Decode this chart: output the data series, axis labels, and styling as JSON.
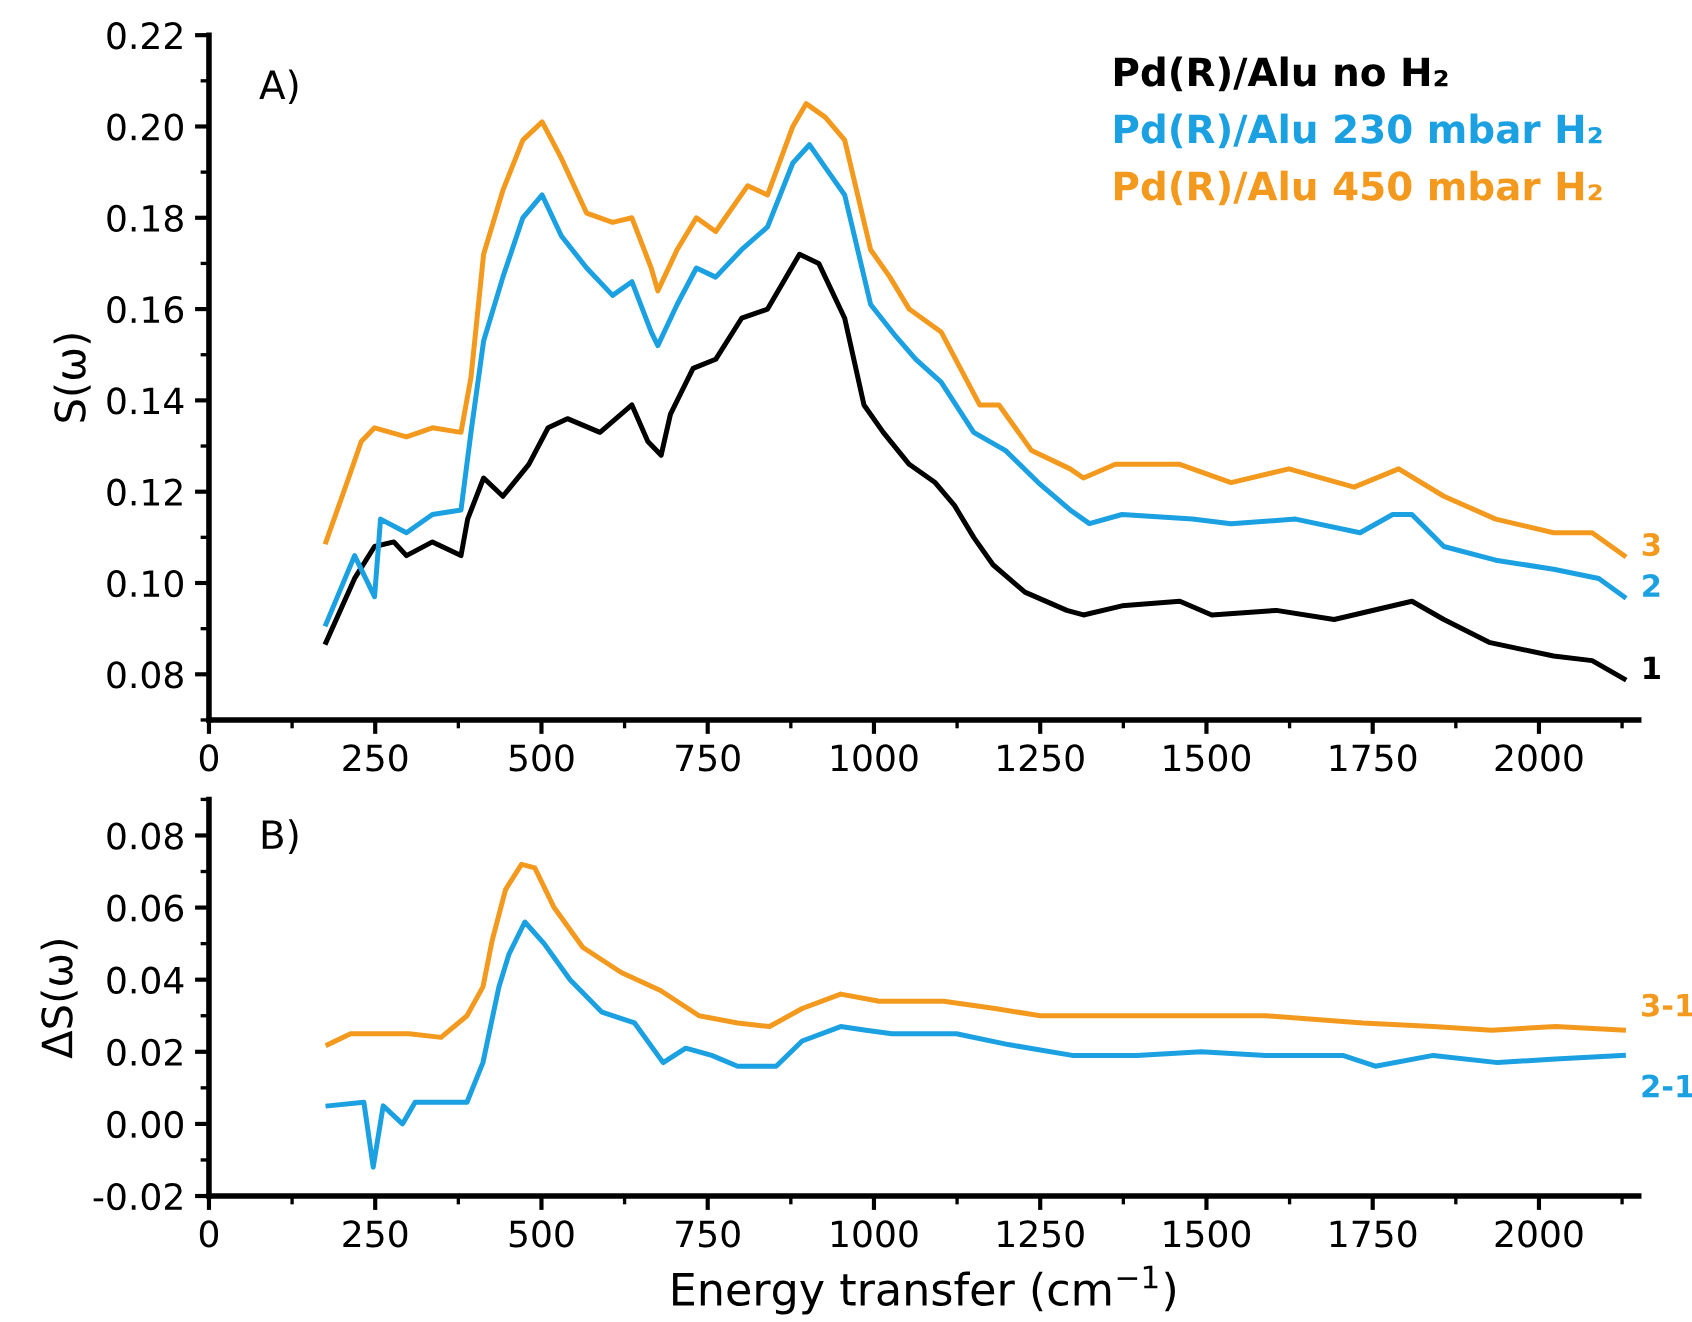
{
  "chart_data": [
    {
      "type": "line",
      "title": "A)",
      "ylabel": "S(ω)",
      "xlim": [
        0,
        2150
      ],
      "xticks": [
        0,
        250,
        500,
        750,
        1000,
        1250,
        1500,
        1750,
        2000
      ],
      "ylim": [
        0.07,
        0.22
      ],
      "yticks": [
        {
          "value": 0.08,
          "label": "0.08"
        },
        {
          "value": 0.1,
          "label": "0.10"
        },
        {
          "value": 0.12,
          "label": "0.12"
        },
        {
          "value": 0.14,
          "label": "0.14"
        },
        {
          "value": 0.16,
          "label": "0.16"
        },
        {
          "value": 0.18,
          "label": "0.18"
        },
        {
          "value": 0.2,
          "label": "0.20"
        },
        {
          "value": 0.22,
          "label": "0.22"
        }
      ],
      "legend": "top right",
      "grid": false,
      "marker": "none",
      "line_style": "solid",
      "series": [
        {
          "name": "Pd(R)/Alu no H₂",
          "color": "#000000",
          "x": [
            176,
            219,
            249,
            278,
            297,
            336,
            379,
            389,
            413,
            442,
            481,
            510,
            539,
            588,
            636,
            660,
            680,
            694,
            728,
            762,
            801,
            840,
            888,
            917,
            956,
            985,
            1014,
            1053,
            1092,
            1121,
            1150,
            1179,
            1227,
            1290,
            1315,
            1373,
            1460,
            1508,
            1605,
            1692,
            1809,
            1857,
            1925,
            2022,
            2080,
            2128
          ],
          "values": [
            0.087,
            0.101,
            0.108,
            0.109,
            0.106,
            0.109,
            0.106,
            0.114,
            0.123,
            0.119,
            0.126,
            0.134,
            0.136,
            0.133,
            0.139,
            0.131,
            0.128,
            0.137,
            0.147,
            0.149,
            0.158,
            0.16,
            0.172,
            0.17,
            0.158,
            0.139,
            0.133,
            0.126,
            0.122,
            0.117,
            0.11,
            0.104,
            0.098,
            0.094,
            0.093,
            0.095,
            0.096,
            0.093,
            0.094,
            0.092,
            0.096,
            0.092,
            0.087,
            0.084,
            0.083,
            0.079
          ]
        },
        {
          "name": "Pd(R)/Alu 230 mbar H₂",
          "color": "#1ba1e2",
          "x": [
            176,
            219,
            249,
            258,
            297,
            336,
            379,
            394,
            413,
            442,
            472,
            501,
            530,
            568,
            607,
            636,
            665,
            675,
            704,
            733,
            762,
            801,
            840,
            878,
            903,
            927,
            956,
            995,
            1033,
            1063,
            1101,
            1150,
            1198,
            1247,
            1295,
            1324,
            1373,
            1479,
            1537,
            1634,
            1731,
            1780,
            1809,
            1857,
            1935,
            2022,
            2090,
            2128
          ],
          "values": [
            0.091,
            0.106,
            0.097,
            0.114,
            0.111,
            0.115,
            0.116,
            0.133,
            0.153,
            0.167,
            0.18,
            0.185,
            0.176,
            0.169,
            0.163,
            0.166,
            0.155,
            0.152,
            0.161,
            0.169,
            0.167,
            0.173,
            0.178,
            0.192,
            0.196,
            0.191,
            0.185,
            0.161,
            0.154,
            0.149,
            0.144,
            0.133,
            0.129,
            0.122,
            0.116,
            0.113,
            0.115,
            0.114,
            0.113,
            0.114,
            0.111,
            0.115,
            0.115,
            0.108,
            0.105,
            0.103,
            0.101,
            0.097
          ]
        },
        {
          "name": "Pd(R)/Alu 450 mbar H₂",
          "color": "#f39a1e",
          "x": [
            176,
            210,
            229,
            249,
            297,
            336,
            379,
            394,
            413,
            442,
            472,
            501,
            530,
            568,
            607,
            636,
            665,
            675,
            704,
            733,
            762,
            810,
            840,
            878,
            898,
            927,
            956,
            995,
            1024,
            1053,
            1101,
            1159,
            1188,
            1237,
            1295,
            1315,
            1363,
            1460,
            1537,
            1624,
            1722,
            1789,
            1857,
            1935,
            2022,
            2080,
            2128
          ],
          "values": [
            0.109,
            0.123,
            0.131,
            0.134,
            0.132,
            0.134,
            0.133,
            0.145,
            0.172,
            0.186,
            0.197,
            0.201,
            0.193,
            0.181,
            0.179,
            0.18,
            0.169,
            0.164,
            0.173,
            0.18,
            0.177,
            0.187,
            0.185,
            0.2,
            0.205,
            0.202,
            0.197,
            0.173,
            0.167,
            0.16,
            0.155,
            0.139,
            0.139,
            0.129,
            0.125,
            0.123,
            0.126,
            0.126,
            0.122,
            0.125,
            0.121,
            0.125,
            0.119,
            0.114,
            0.111,
            0.111,
            0.106
          ]
        }
      ],
      "annotations": [
        "1",
        "2",
        "3"
      ]
    },
    {
      "type": "line",
      "title": "B)",
      "xlabel": "Energy transfer (cm$^{−1}$)",
      "ylabel": "ΔS(ω)",
      "xlim": [
        0,
        2150
      ],
      "xticks": [
        0,
        250,
        500,
        750,
        1000,
        1250,
        1500,
        1750,
        2000
      ],
      "ylim": [
        -0.02,
        0.09
      ],
      "yticks": [
        {
          "value": -0.02,
          "label": "-0.02"
        },
        {
          "value": 0,
          "label": "0.00"
        },
        {
          "value": 0.02,
          "label": "0.02"
        },
        {
          "value": 0.04,
          "label": "0.04"
        },
        {
          "value": 0.06,
          "label": "0.06"
        },
        {
          "value": 0.08,
          "label": "0.08"
        }
      ],
      "legend": false,
      "grid": false,
      "marker": "none",
      "line_style": "solid",
      "series": [
        {
          "name": "3-1",
          "color": "#f39a1e",
          "x": [
            179,
            213,
            301,
            349,
            388,
            412,
            426,
            446,
            470,
            490,
            519,
            562,
            620,
            679,
            737,
            795,
            843,
            892,
            950,
            1008,
            1105,
            1182,
            1250,
            1395,
            1589,
            1735,
            1841,
            1929,
            2025,
            2127
          ],
          "values": [
            0.022,
            0.025,
            0.025,
            0.024,
            0.03,
            0.038,
            0.051,
            0.065,
            0.072,
            0.071,
            0.06,
            0.049,
            0.042,
            0.037,
            0.03,
            0.028,
            0.027,
            0.032,
            0.036,
            0.034,
            0.034,
            0.032,
            0.03,
            0.03,
            0.03,
            0.028,
            0.027,
            0.026,
            0.027,
            0.026
          ]
        },
        {
          "name": "2-1",
          "color": "#1ba1e2",
          "x": [
            179,
            233,
            247,
            262,
            291,
            310,
            359,
            388,
            412,
            436,
            451,
            475,
            504,
            543,
            591,
            640,
            683,
            717,
            756,
            795,
            853,
            892,
            950,
            988,
            1027,
            1105,
            1124,
            1202,
            1298,
            1395,
            1492,
            1589,
            1705,
            1754,
            1841,
            1938,
            2025,
            2127
          ],
          "values": [
            0.005,
            0.006,
            -0.012,
            0.005,
            0.0,
            0.006,
            0.006,
            0.006,
            0.017,
            0.038,
            0.047,
            0.056,
            0.05,
            0.04,
            0.031,
            0.028,
            0.017,
            0.021,
            0.019,
            0.016,
            0.016,
            0.023,
            0.027,
            0.026,
            0.025,
            0.025,
            0.025,
            0.022,
            0.019,
            0.019,
            0.02,
            0.019,
            0.019,
            0.016,
            0.019,
            0.017,
            0.018,
            0.019
          ]
        }
      ]
    }
  ]
}
